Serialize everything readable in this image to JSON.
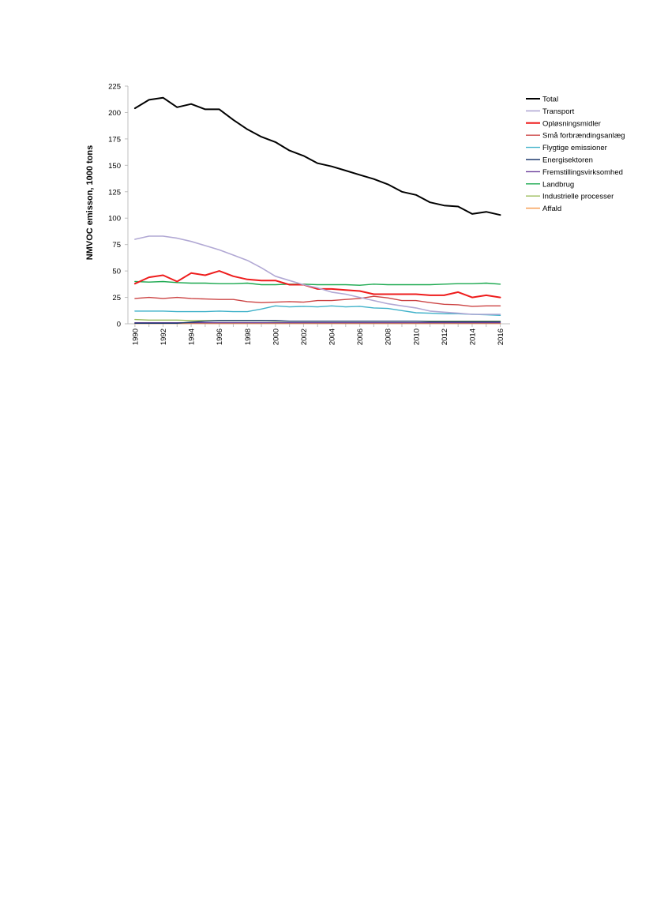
{
  "chart_data": {
    "type": "line",
    "title": "",
    "xlabel": "",
    "ylabel": "NMVOC emisson, 1000 tons",
    "ylim": [
      0,
      225
    ],
    "yticks": [
      0,
      25,
      50,
      75,
      100,
      125,
      150,
      175,
      200,
      225
    ],
    "x": [
      1990,
      1991,
      1992,
      1993,
      1994,
      1995,
      1996,
      1997,
      1998,
      1999,
      2000,
      2001,
      2002,
      2003,
      2004,
      2005,
      2006,
      2007,
      2008,
      2009,
      2010,
      2011,
      2012,
      2013,
      2014,
      2015,
      2016
    ],
    "xtick_labels": [
      "1990",
      "1992",
      "1994",
      "1996",
      "1998",
      "2000",
      "2002",
      "2004",
      "2006",
      "2008",
      "2010",
      "2012",
      "2014",
      "2016"
    ],
    "grid": false,
    "legend_position": "right",
    "series": [
      {
        "name": "Total",
        "color": "#000000",
        "width": 2,
        "values": [
          204,
          212,
          214,
          205,
          208,
          203,
          203,
          193,
          184,
          177,
          172,
          164,
          159,
          152,
          149,
          145,
          141,
          137,
          132,
          125,
          122,
          115,
          112,
          111,
          104,
          106,
          103
        ]
      },
      {
        "name": "Transport",
        "color": "#b1a8d4",
        "width": 1.6,
        "values": [
          80,
          83,
          83,
          81,
          78,
          74,
          70,
          65,
          60,
          53,
          45,
          41,
          37,
          34,
          30,
          28,
          25,
          22,
          19,
          17,
          15,
          12,
          11,
          10,
          9,
          9,
          9
        ]
      },
      {
        "name": "Opløsningsmidler",
        "color": "#ee1c1c",
        "width": 2,
        "values": [
          38,
          44,
          46,
          40,
          48,
          46,
          50,
          45,
          42,
          41,
          41,
          37,
          37,
          33,
          33,
          32,
          31,
          28,
          28,
          28,
          28,
          27,
          27,
          30,
          25,
          27,
          25
        ]
      },
      {
        "name": "Små forbrændingsanlæg",
        "color": "#cc4444",
        "width": 1.4,
        "values": [
          24,
          25,
          24,
          25,
          24,
          23.5,
          23,
          23,
          21,
          20,
          20.5,
          21,
          20.5,
          22,
          22,
          23,
          24,
          26,
          24.5,
          22,
          22,
          20,
          18.5,
          18,
          16.5,
          17,
          17
        ]
      },
      {
        "name": "Flygtige emissioner",
        "color": "#3fb1c9",
        "width": 1.4,
        "values": [
          12,
          12,
          12,
          11.5,
          11.5,
          11.5,
          12,
          11.5,
          11.5,
          14,
          17,
          16,
          16.5,
          16,
          17,
          16,
          16.5,
          15,
          14.5,
          12.5,
          10.5,
          10,
          9.5,
          9.5,
          9,
          8.5,
          8
        ]
      },
      {
        "name": "Energisektoren",
        "color": "#1f3a6e",
        "width": 1.4,
        "values": [
          0.5,
          0.5,
          0.5,
          0.5,
          1.5,
          2.5,
          3,
          3,
          3,
          3,
          3,
          2.5,
          2.5,
          2.5,
          2.5,
          2.5,
          2.5,
          2.5,
          2.5,
          2.5,
          2.5,
          2,
          2,
          2,
          2,
          2,
          2
        ]
      },
      {
        "name": "Fremstillingsvirksomhed",
        "color": "#6a3d9a",
        "width": 1.4,
        "values": [
          1,
          1,
          1,
          1,
          1,
          1,
          1,
          1,
          1,
          1,
          1,
          1,
          1,
          1,
          1,
          1,
          1,
          1,
          1,
          1,
          1,
          1,
          1,
          1,
          1,
          1,
          1
        ]
      },
      {
        "name": "Landbrug",
        "color": "#1aa84e",
        "width": 1.4,
        "values": [
          40,
          39.5,
          40,
          39,
          38.5,
          38.5,
          38,
          38,
          38.5,
          37,
          37,
          37.5,
          37.5,
          37,
          37,
          37,
          36.5,
          37.5,
          37,
          37,
          37,
          37,
          37.5,
          38,
          38,
          38.5,
          37.5
        ]
      },
      {
        "name": "Industrielle processer",
        "color": "#9bbb59",
        "width": 1.4,
        "values": [
          4,
          3.5,
          3.5,
          3.5,
          3,
          3,
          3,
          3,
          3,
          3,
          2.5,
          2.5,
          2.5,
          2.5,
          2.5,
          2.5,
          2.5,
          2.5,
          2.5,
          2.5,
          2.5,
          2.5,
          2.5,
          2.5,
          2.5,
          2.5,
          2.5
        ]
      },
      {
        "name": "Affald",
        "color": "#f79646",
        "width": 1.4,
        "values": [
          0.3,
          0.3,
          0.3,
          0.3,
          0.3,
          0.3,
          0.3,
          0.3,
          0.3,
          0.3,
          0.3,
          0.3,
          0.3,
          0.3,
          0.3,
          0.3,
          0.3,
          0.3,
          0.3,
          0.3,
          0.3,
          0.3,
          0.3,
          0.3,
          0.3,
          0.3,
          0.3
        ]
      }
    ]
  }
}
